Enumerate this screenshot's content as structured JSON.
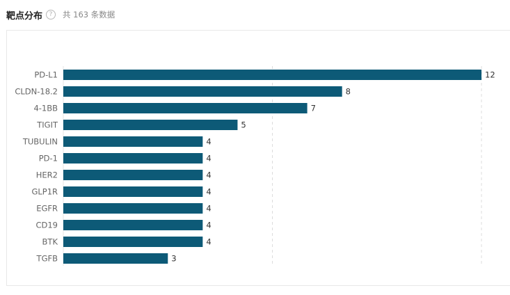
{
  "header": {
    "title": "靶点分布",
    "help_glyph": "?",
    "count_text": "共 163 条数据"
  },
  "chart_data": {
    "type": "bar",
    "orientation": "horizontal",
    "categories": [
      "PD-L1",
      "CLDN-18.2",
      "4-1BB",
      "TIGIT",
      "TUBULIN",
      "PD-1",
      "HER2",
      "GLP1R",
      "EGFR",
      "CD19",
      "BTK",
      "TGFB"
    ],
    "values": [
      12,
      8,
      7,
      5,
      4,
      4,
      4,
      4,
      4,
      4,
      4,
      3
    ],
    "xlim": [
      0,
      12
    ],
    "gridlines_at": [
      6,
      12
    ],
    "bar_color": "#0d5a77",
    "grid": true,
    "legend": "none"
  }
}
